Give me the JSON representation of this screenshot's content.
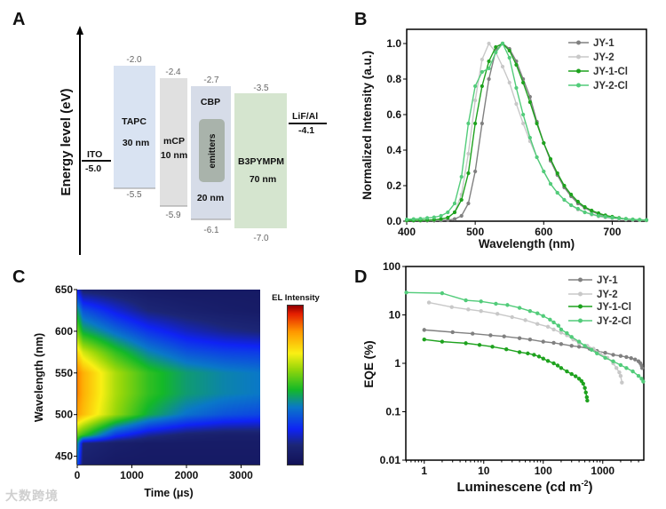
{
  "panels": {
    "a": "A",
    "b": "B",
    "c": "C",
    "d": "D"
  },
  "energy_diagram": {
    "ylabel": "Energy level (eV)",
    "ito": {
      "name": "ITO",
      "level": "-5.0"
    },
    "cathode": {
      "name": "LiF/Al",
      "level": "-4.1"
    },
    "layers": [
      {
        "name": "TAPC",
        "thickness": "30 nm",
        "lumo": "-2.0",
        "homo": "-5.5",
        "color": "#d9e3f2"
      },
      {
        "name": "mCP",
        "thickness": "10 nm",
        "lumo": "-2.4",
        "homo": "-5.9",
        "color": "#e0e0e0"
      },
      {
        "name": "CBP",
        "thickness": "20 nm",
        "lumo": "-2.7",
        "homo": "-6.1",
        "color": "#d6dce8",
        "dopant": "emitters"
      },
      {
        "name": "B3PYMPM",
        "thickness": "70 nm",
        "lumo": "-3.5",
        "homo": "-7.0",
        "color": "#d5e5cf"
      }
    ]
  },
  "chart_data": [
    {
      "type": "line",
      "title": "",
      "xlabel": "Wavelength (nm)",
      "ylabel": "Normalized Intensity (a.u.)",
      "xlim": [
        400,
        750
      ],
      "ylim": [
        0,
        1.08
      ],
      "xticks": [
        "400",
        "500",
        "600",
        "700"
      ],
      "yticks": [
        "0.0",
        "0.2",
        "0.4",
        "0.6",
        "0.8",
        "1.0"
      ],
      "legend": "top-right",
      "x": [
        400,
        410,
        420,
        430,
        440,
        450,
        460,
        470,
        480,
        490,
        500,
        510,
        520,
        530,
        540,
        550,
        560,
        570,
        580,
        590,
        600,
        610,
        620,
        630,
        640,
        650,
        660,
        670,
        680,
        690,
        700,
        710,
        720,
        730,
        740,
        750
      ],
      "series": [
        {
          "name": "JY-1",
          "color": "#808080",
          "values": [
            0.003,
            0.003,
            0.003,
            0.003,
            0.003,
            0.004,
            0.006,
            0.012,
            0.03,
            0.1,
            0.28,
            0.55,
            0.8,
            0.96,
            1.0,
            0.97,
            0.9,
            0.8,
            0.7,
            0.56,
            0.44,
            0.34,
            0.26,
            0.19,
            0.14,
            0.1,
            0.075,
            0.055,
            0.04,
            0.03,
            0.022,
            0.016,
            0.012,
            0.009,
            0.007,
            0.005
          ]
        },
        {
          "name": "JY-2",
          "color": "#c8c8c8",
          "values": [
            0.004,
            0.004,
            0.005,
            0.006,
            0.008,
            0.012,
            0.02,
            0.05,
            0.15,
            0.38,
            0.68,
            0.91,
            1.0,
            0.95,
            0.87,
            0.78,
            0.66,
            0.55,
            0.45,
            0.36,
            0.28,
            0.21,
            0.16,
            0.12,
            0.09,
            0.065,
            0.05,
            0.037,
            0.027,
            0.02,
            0.015,
            0.012,
            0.009,
            0.007,
            0.005,
            0.004
          ]
        },
        {
          "name": "JY-1-Cl",
          "color": "#1ea21e",
          "values": [
            0.004,
            0.004,
            0.005,
            0.006,
            0.008,
            0.012,
            0.02,
            0.05,
            0.12,
            0.27,
            0.55,
            0.76,
            0.9,
            0.98,
            1.0,
            0.96,
            0.88,
            0.78,
            0.67,
            0.55,
            0.44,
            0.35,
            0.27,
            0.2,
            0.15,
            0.11,
            0.08,
            0.06,
            0.045,
            0.033,
            0.025,
            0.018,
            0.013,
            0.01,
            0.008,
            0.006
          ]
        },
        {
          "name": "JY-2-Cl",
          "color": "#52cc7a",
          "values": [
            0.01,
            0.012,
            0.014,
            0.018,
            0.022,
            0.03,
            0.05,
            0.1,
            0.25,
            0.55,
            0.76,
            0.84,
            0.86,
            0.95,
            1.0,
            0.92,
            0.75,
            0.6,
            0.47,
            0.36,
            0.28,
            0.21,
            0.16,
            0.12,
            0.09,
            0.07,
            0.05,
            0.04,
            0.03,
            0.025,
            0.02,
            0.016,
            0.013,
            0.01,
            0.008,
            0.007
          ]
        }
      ]
    },
    {
      "type": "heatmap",
      "xlabel": "Time (μs)",
      "ylabel": "Wavelength (nm)",
      "colorbar_label": "EL Intensity",
      "xlim": [
        0,
        3350
      ],
      "ylim": [
        440,
        650
      ],
      "xticks": [
        "0",
        "1000",
        "2000",
        "3000"
      ],
      "yticks": [
        "450",
        "500",
        "550",
        "600",
        "650"
      ],
      "x": [
        0,
        100,
        700,
        1300,
        2000,
        2700,
        3350
      ],
      "y": [
        440,
        465,
        475,
        500,
        525,
        550,
        575,
        600,
        625,
        650
      ],
      "z": [
        [
          0.3,
          0.08,
          0.05,
          0.05,
          0.05,
          0.05,
          0.05
        ],
        [
          0.4,
          0.12,
          0.08,
          0.06,
          0.06,
          0.06,
          0.06
        ],
        [
          0.55,
          0.5,
          0.25,
          0.15,
          0.1,
          0.08,
          0.08
        ],
        [
          0.82,
          0.78,
          0.6,
          0.45,
          0.35,
          0.3,
          0.28
        ],
        [
          0.86,
          0.8,
          0.62,
          0.5,
          0.42,
          0.38,
          0.36
        ],
        [
          0.86,
          0.8,
          0.62,
          0.5,
          0.42,
          0.38,
          0.36
        ],
        [
          0.74,
          0.66,
          0.5,
          0.38,
          0.3,
          0.27,
          0.26
        ],
        [
          0.56,
          0.45,
          0.34,
          0.25,
          0.18,
          0.14,
          0.12
        ],
        [
          0.42,
          0.3,
          0.2,
          0.12,
          0.09,
          0.07,
          0.06
        ],
        [
          0.2,
          0.1,
          0.08,
          0.06,
          0.05,
          0.05,
          0.05
        ]
      ]
    },
    {
      "type": "line",
      "scale": "log-log",
      "xlabel": "Luminescene (cd m",
      "xlabel_sup": "-2",
      "xlabel_end": ")",
      "ylabel": "EQE (%)",
      "xlim": [
        0.49,
        4900
      ],
      "ylim": [
        0.01,
        100
      ],
      "xticks": [
        "1",
        "10",
        "100",
        "1000"
      ],
      "yticks": [
        "0.01",
        "0.1",
        "1",
        "10",
        "100"
      ],
      "legend": "top-right",
      "series": [
        {
          "name": "JY-1",
          "color": "#808080",
          "points": [
            [
              1,
              4.9
            ],
            [
              3,
              4.4
            ],
            [
              6.5,
              4.1
            ],
            [
              13,
              3.8
            ],
            [
              22,
              3.6
            ],
            [
              40,
              3.3
            ],
            [
              60,
              3.1
            ],
            [
              100,
              2.8
            ],
            [
              150,
              2.65
            ],
            [
              200,
              2.5
            ],
            [
              300,
              2.3
            ],
            [
              400,
              2.2
            ],
            [
              600,
              2.0
            ],
            [
              800,
              1.8
            ],
            [
              1100,
              1.65
            ],
            [
              1500,
              1.5
            ],
            [
              2000,
              1.42
            ],
            [
              2500,
              1.35
            ],
            [
              3000,
              1.28
            ],
            [
              3500,
              1.2
            ],
            [
              4000,
              1.1
            ],
            [
              4300,
              1.0
            ],
            [
              4500,
              0.9
            ],
            [
              4600,
              0.8
            ]
          ]
        },
        {
          "name": "JY-2",
          "color": "#c8c8c8",
          "points": [
            [
              1.2,
              18
            ],
            [
              2.9,
              14.5
            ],
            [
              5.5,
              13
            ],
            [
              9,
              12
            ],
            [
              17,
              10.5
            ],
            [
              30,
              9
            ],
            [
              50,
              7.8
            ],
            [
              80,
              6.5
            ],
            [
              120,
              5.7
            ],
            [
              150,
              5
            ],
            [
              200,
              4.3
            ],
            [
              250,
              3.8
            ],
            [
              320,
              3.1
            ],
            [
              400,
              2.6
            ],
            [
              550,
              2.3
            ],
            [
              700,
              2.0
            ],
            [
              900,
              1.6
            ],
            [
              1200,
              1.3
            ],
            [
              1500,
              1.0
            ],
            [
              1700,
              0.8
            ],
            [
              1900,
              0.65
            ],
            [
              2000,
              0.55
            ],
            [
              2100,
              0.4
            ]
          ]
        },
        {
          "name": "JY-1-Cl",
          "color": "#1ea21e",
          "points": [
            [
              1,
              3.1
            ],
            [
              2,
              2.8
            ],
            [
              5,
              2.6
            ],
            [
              8.5,
              2.4
            ],
            [
              14,
              2.2
            ],
            [
              24,
              1.95
            ],
            [
              40,
              1.7
            ],
            [
              55,
              1.6
            ],
            [
              70,
              1.5
            ],
            [
              85,
              1.38
            ],
            [
              100,
              1.25
            ],
            [
              120,
              1.12
            ],
            [
              150,
              1.0
            ],
            [
              175,
              0.9
            ],
            [
              200,
              0.8
            ],
            [
              250,
              0.68
            ],
            [
              300,
              0.6
            ],
            [
              350,
              0.54
            ],
            [
              400,
              0.48
            ],
            [
              440,
              0.43
            ],
            [
              470,
              0.38
            ],
            [
              500,
              0.31
            ],
            [
              520,
              0.25
            ],
            [
              540,
              0.2
            ],
            [
              550,
              0.17
            ]
          ]
        },
        {
          "name": "JY-2-Cl",
          "color": "#52cc7a",
          "points": [
            [
              0.5,
              29
            ],
            [
              2,
              28
            ],
            [
              5,
              20
            ],
            [
              9,
              19
            ],
            [
              16,
              17
            ],
            [
              25,
              16
            ],
            [
              40,
              14
            ],
            [
              60,
              12
            ],
            [
              80,
              10.8
            ],
            [
              100,
              9.5
            ],
            [
              130,
              8
            ],
            [
              150,
              7
            ],
            [
              180,
              6
            ],
            [
              200,
              5
            ],
            [
              250,
              4.2
            ],
            [
              300,
              3.5
            ],
            [
              400,
              2.8
            ],
            [
              500,
              2.3
            ],
            [
              650,
              1.9
            ],
            [
              800,
              1.6
            ],
            [
              1100,
              1.3
            ],
            [
              1500,
              1.1
            ],
            [
              2000,
              0.92
            ],
            [
              2500,
              0.8
            ],
            [
              3200,
              0.68
            ],
            [
              4000,
              0.55
            ],
            [
              4500,
              0.48
            ],
            [
              4800,
              0.42
            ]
          ]
        }
      ]
    }
  ],
  "watermark": "大数跨境"
}
